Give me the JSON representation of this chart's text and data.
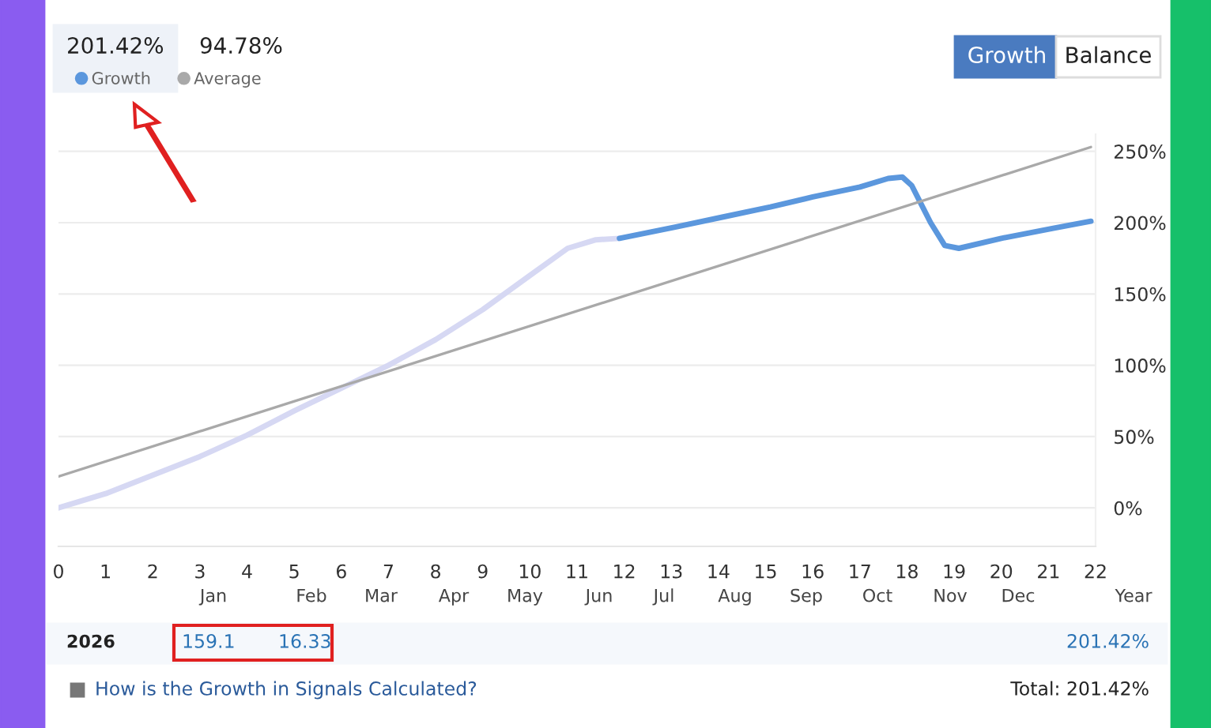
{
  "chart_data": {
    "type": "line",
    "xlim": [
      0,
      22
    ],
    "xticks": [
      0,
      1,
      2,
      3,
      4,
      5,
      6,
      7,
      8,
      9,
      10,
      11,
      12,
      13,
      14,
      15,
      16,
      17,
      18,
      19,
      20,
      21,
      22
    ],
    "ylim": [
      -27,
      262
    ],
    "yticks": [
      {
        "value": 0,
        "label": "0%"
      },
      {
        "value": 50,
        "label": "50%"
      },
      {
        "value": 100,
        "label": "100%"
      },
      {
        "value": 150,
        "label": "150%"
      },
      {
        "value": 200,
        "label": "200%"
      },
      {
        "value": 250,
        "label": "250%"
      }
    ],
    "grid": "y",
    "legend": "top left",
    "marker": "none",
    "series": [
      {
        "color": "#d6d8f3",
        "x": [
          0,
          1,
          2,
          3,
          4,
          5,
          6,
          7,
          8,
          9,
          10,
          10.8,
          11.4,
          11.9
        ],
        "values": [
          0,
          10,
          23,
          36,
          51,
          68,
          84,
          100,
          118,
          139,
          163,
          182,
          188,
          189
        ]
      },
      {
        "name": "Growth",
        "color": "#5b97dd",
        "x": [
          11.9,
          13.1,
          14.1,
          15.1,
          16,
          17,
          17.6,
          17.9,
          18.1,
          18.5,
          18.8,
          19.1,
          20,
          21.1,
          21.9
        ],
        "values": [
          189,
          197,
          204,
          211,
          218,
          225,
          231,
          232,
          226,
          200,
          184,
          182,
          189,
          196,
          201
        ]
      },
      {
        "name": "Average",
        "color": "#a9a9a9",
        "x": [
          0,
          21.9
        ],
        "values": [
          22,
          253
        ]
      }
    ],
    "annotations": [
      "201.42%",
      "94.78%",
      "Growth",
      "Balance",
      "Jan",
      "Feb",
      "Mar",
      "Apr",
      "May",
      "Jun",
      "Jul",
      "Aug",
      "Sep",
      "Oct",
      "Nov",
      "Dec",
      "Year",
      "2026",
      "159.1",
      "16.33",
      "201.42%",
      "How is the Growth in Signals Calculated?",
      "Total: 201.42%"
    ]
  }
}
